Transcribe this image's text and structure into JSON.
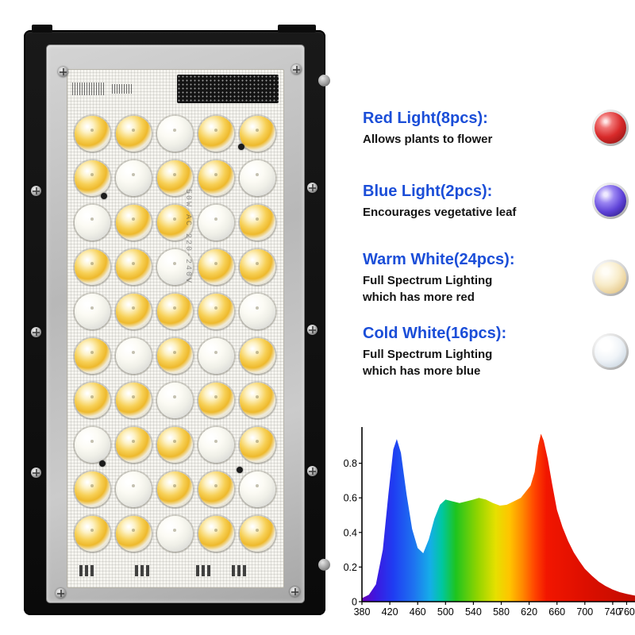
{
  "colors": {
    "heading": "#1b4ed8",
    "body_text": "#141414",
    "warm_led": "#f2c43d",
    "cold_led": "#f4f4ea",
    "panel_black": "#111111"
  },
  "panel": {
    "print_text": "50W AC 220-240V",
    "led_pattern": [
      "wwcww",
      "wcwwc",
      "cwwcw",
      "wwcww",
      "cwwwc",
      "wcwcw",
      "wwcww",
      "cwwcw",
      "wcwwc",
      "wwcww"
    ]
  },
  "features": [
    {
      "heading": "Red Light(8pcs):",
      "lines": [
        "Allows plants to flower"
      ],
      "ball_color": "#d82a2a"
    },
    {
      "heading": "Blue Light(2pcs):",
      "lines": [
        "Encourages vegetative leaf"
      ],
      "ball_color": "#5d41d6"
    },
    {
      "heading": "Warm White(24pcs):",
      "lines": [
        "Full Spectrum Lighting",
        "which has more red"
      ],
      "ball_color": "#f8ecca"
    },
    {
      "heading": "Cold White(16pcs):",
      "lines": [
        "Full Spectrum Lighting",
        "which has more blue"
      ],
      "ball_color": "#f0f4f8"
    }
  ],
  "chart_data": {
    "type": "area",
    "title": "",
    "xlabel": "",
    "ylabel": "",
    "xlim": [
      380,
      772
    ],
    "ylim": [
      0,
      1.0
    ],
    "grid": false,
    "x_ticks": [
      380,
      420,
      460,
      500,
      540,
      580,
      620,
      660,
      700,
      740,
      760
    ],
    "y_ticks": [
      0,
      0.2,
      0.4,
      0.6,
      0.8
    ],
    "fill": "spectrum-rainbow-gradient",
    "gradient_stops": [
      {
        "wavelength": 380,
        "color": "#6a00b8"
      },
      {
        "wavelength": 400,
        "color": "#3c18e0"
      },
      {
        "wavelength": 425,
        "color": "#1f3df2"
      },
      {
        "wavelength": 455,
        "color": "#1e74f0"
      },
      {
        "wavelength": 478,
        "color": "#15aee8"
      },
      {
        "wavelength": 495,
        "color": "#00c7a0"
      },
      {
        "wavelength": 515,
        "color": "#1ec41e"
      },
      {
        "wavelength": 545,
        "color": "#8ed400"
      },
      {
        "wavelength": 572,
        "color": "#e6e000"
      },
      {
        "wavelength": 592,
        "color": "#ffc400"
      },
      {
        "wavelength": 610,
        "color": "#ff8a00"
      },
      {
        "wavelength": 628,
        "color": "#ff4400"
      },
      {
        "wavelength": 645,
        "color": "#f21600"
      },
      {
        "wavelength": 700,
        "color": "#dd0f00"
      },
      {
        "wavelength": 772,
        "color": "#c20c00"
      }
    ],
    "points": [
      [
        380,
        0.02
      ],
      [
        390,
        0.04
      ],
      [
        400,
        0.1
      ],
      [
        410,
        0.3
      ],
      [
        418,
        0.62
      ],
      [
        425,
        0.88
      ],
      [
        430,
        0.94
      ],
      [
        436,
        0.86
      ],
      [
        444,
        0.62
      ],
      [
        452,
        0.42
      ],
      [
        460,
        0.31
      ],
      [
        468,
        0.28
      ],
      [
        476,
        0.36
      ],
      [
        484,
        0.48
      ],
      [
        492,
        0.56
      ],
      [
        500,
        0.59
      ],
      [
        510,
        0.58
      ],
      [
        520,
        0.57
      ],
      [
        530,
        0.58
      ],
      [
        540,
        0.59
      ],
      [
        548,
        0.6
      ],
      [
        558,
        0.59
      ],
      [
        568,
        0.57
      ],
      [
        578,
        0.555
      ],
      [
        588,
        0.56
      ],
      [
        598,
        0.58
      ],
      [
        608,
        0.6
      ],
      [
        616,
        0.64
      ],
      [
        622,
        0.67
      ],
      [
        628,
        0.75
      ],
      [
        633,
        0.9
      ],
      [
        637,
        0.97
      ],
      [
        641,
        0.93
      ],
      [
        647,
        0.82
      ],
      [
        653,
        0.68
      ],
      [
        660,
        0.53
      ],
      [
        668,
        0.43
      ],
      [
        676,
        0.35
      ],
      [
        684,
        0.285
      ],
      [
        692,
        0.235
      ],
      [
        700,
        0.19
      ],
      [
        710,
        0.15
      ],
      [
        720,
        0.115
      ],
      [
        730,
        0.09
      ],
      [
        740,
        0.07
      ],
      [
        750,
        0.055
      ],
      [
        760,
        0.045
      ],
      [
        772,
        0.035
      ]
    ]
  }
}
